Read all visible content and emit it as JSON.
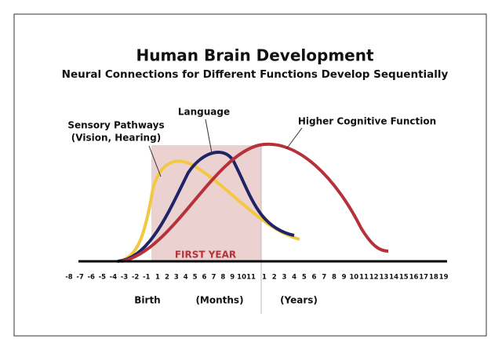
{
  "header": {
    "title": "Human Brain Development",
    "subtitle": "Neural Connections for Different Functions Develop Sequentially"
  },
  "labels": {
    "sensory": [
      "Sensory Pathways",
      "(Vision, Hearing)"
    ],
    "language": "Language",
    "cognitive": "Higher Cognitive Function",
    "first_year": "FIRST YEAR"
  },
  "axis": {
    "prenatal": [
      "-8",
      "-7",
      "-6",
      "-5",
      "-4",
      "-3",
      "-2",
      "-1"
    ],
    "months": [
      "1",
      "2",
      "3",
      "4",
      "5",
      "6",
      "7",
      "8",
      "9",
      "10",
      "11"
    ],
    "years": [
      "1",
      "2",
      "3",
      "4",
      "5",
      "6",
      "7",
      "8",
      "9",
      "10",
      "11",
      "12",
      "13",
      "14",
      "15",
      "16",
      "17",
      "18",
      "19"
    ],
    "birth": "Birth",
    "months_label": "(Months)",
    "years_label": "(Years)"
  }
}
